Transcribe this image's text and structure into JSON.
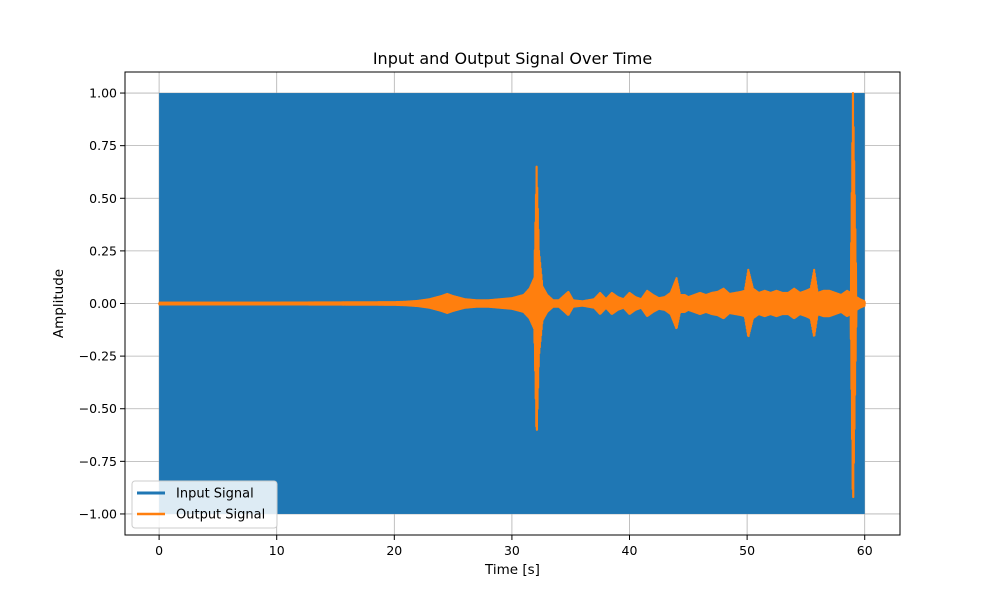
{
  "chart_data": {
    "type": "line",
    "title": "Input and Output Signal Over Time",
    "xlabel": "Time [s]",
    "ylabel": "Amplitude",
    "xlim": [
      -2.9,
      63
    ],
    "ylim": [
      -1.1,
      1.1
    ],
    "x_ticks": [
      0,
      10,
      20,
      30,
      40,
      50,
      60
    ],
    "x_tick_labels": [
      "0",
      "10",
      "20",
      "30",
      "40",
      "50",
      "60"
    ],
    "y_ticks": [
      -1.0,
      -0.75,
      -0.5,
      -0.25,
      0.0,
      0.25,
      0.5,
      0.75,
      1.0
    ],
    "y_tick_labels": [
      "−1.00",
      "−0.75",
      "−0.50",
      "−0.25",
      "0.00",
      "0.25",
      "0.50",
      "0.75",
      "1.00"
    ],
    "grid": true,
    "legend_position": "bottom-left",
    "series": [
      {
        "name": "Input Signal",
        "color": "#1f77b4",
        "description_type": "dense-oscillation-band",
        "x_range": [
          0,
          60
        ],
        "amplitude": 1.0
      },
      {
        "name": "Output Signal",
        "color": "#ff7f0e",
        "description_type": "envelope",
        "x": [
          0,
          5,
          10,
          15,
          20,
          21,
          22,
          23,
          24,
          24.5,
          25,
          26,
          27,
          28,
          29,
          30,
          31,
          31.5,
          31.9,
          32.1,
          32.3,
          32.6,
          33,
          33.5,
          34,
          34.5,
          34.8,
          35.2,
          36,
          37,
          37.5,
          38,
          38.5,
          39,
          39.5,
          40,
          40.5,
          41,
          41.5,
          42,
          42.5,
          43,
          43.5,
          44,
          44.3,
          44.7,
          45,
          45.5,
          46,
          46.5,
          47,
          47.5,
          48,
          48.5,
          49,
          49.5,
          49.8,
          50.1,
          50.5,
          51,
          51.5,
          52,
          52.5,
          53,
          53.5,
          54,
          54.5,
          55,
          55.4,
          55.7,
          56,
          56.5,
          57,
          57.5,
          58,
          58.5,
          58.8,
          59,
          59.3,
          59.6,
          60
        ],
        "amp": [
          0.004,
          0.004,
          0.004,
          0.005,
          0.006,
          0.008,
          0.012,
          0.02,
          0.035,
          0.045,
          0.035,
          0.02,
          0.015,
          0.015,
          0.02,
          0.025,
          0.04,
          0.07,
          0.12,
          0.65,
          0.25,
          0.08,
          0.04,
          0.015,
          0.015,
          0.04,
          0.055,
          0.015,
          0.01,
          0.02,
          0.05,
          0.02,
          0.05,
          0.03,
          0.02,
          0.05,
          0.03,
          0.02,
          0.06,
          0.04,
          0.025,
          0.03,
          0.05,
          0.12,
          0.04,
          0.04,
          0.03,
          0.04,
          0.05,
          0.04,
          0.05,
          0.055,
          0.07,
          0.045,
          0.05,
          0.055,
          0.06,
          0.16,
          0.07,
          0.05,
          0.06,
          0.05,
          0.06,
          0.05,
          0.05,
          0.07,
          0.05,
          0.06,
          0.07,
          0.16,
          0.05,
          0.06,
          0.06,
          0.05,
          0.04,
          0.06,
          0.05,
          1.0,
          0.03,
          0.02,
          0.01
        ]
      }
    ]
  }
}
